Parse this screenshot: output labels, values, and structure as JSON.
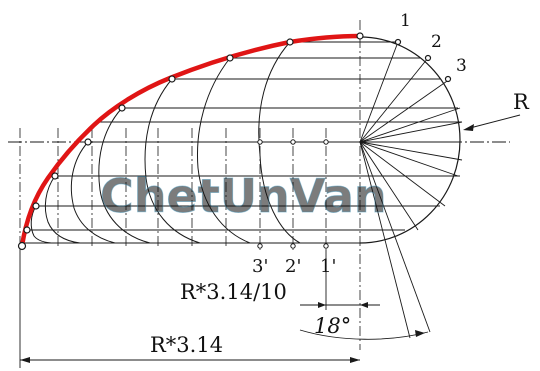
{
  "labels": {
    "point_1": "1",
    "point_2": "2",
    "point_3": "3",
    "radius_label": "R",
    "tick_3p": "3'",
    "tick_2p": "2'",
    "tick_1p": "1'",
    "dim_short": "R*3.14/10",
    "dim_angle": "18°",
    "dim_long": "R*3.14"
  },
  "watermark": "ChetUnVan",
  "colors": {
    "curve": "#e01515",
    "line": "#1a1a1a",
    "watermark_fill": "#7ec8e3",
    "watermark_stroke": "#3c8fb3"
  }
}
